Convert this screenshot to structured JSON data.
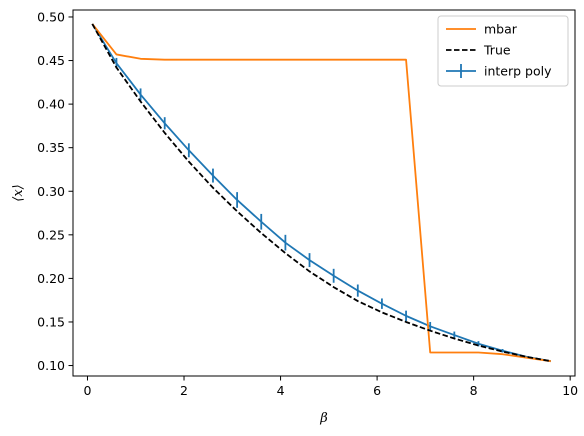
{
  "chart_data": {
    "type": "line",
    "title": "",
    "xlabel": "β",
    "ylabel": "⟨x⟩",
    "xlim": [
      -0.3,
      10.1
    ],
    "ylim": [
      0.088,
      0.508
    ],
    "xticks": [
      0,
      2,
      4,
      6,
      8,
      10
    ],
    "xtick_labels": [
      "0",
      "2",
      "4",
      "6",
      "8",
      "10"
    ],
    "yticks": [
      0.1,
      0.15,
      0.2,
      0.25,
      0.3,
      0.35,
      0.4,
      0.45,
      0.5
    ],
    "ytick_labels": [
      "0.10",
      "0.15",
      "0.20",
      "0.25",
      "0.30",
      "0.35",
      "0.40",
      "0.45",
      "0.50"
    ],
    "grid": false,
    "legend_position": "top-right",
    "series": [
      {
        "name": "mbar",
        "color": "#ff7f0e",
        "style": "solid",
        "x": [
          0.1,
          0.6,
          1.1,
          1.6,
          2.1,
          2.6,
          3.1,
          3.6,
          4.1,
          4.6,
          5.1,
          5.6,
          6.1,
          6.6,
          7.1,
          7.6,
          8.1,
          8.6,
          9.1,
          9.6
        ],
        "y": [
          0.492,
          0.457,
          0.452,
          0.451,
          0.451,
          0.451,
          0.451,
          0.451,
          0.451,
          0.451,
          0.451,
          0.451,
          0.451,
          0.451,
          0.115,
          0.115,
          0.115,
          0.113,
          0.109,
          0.105
        ]
      },
      {
        "name": "True",
        "color": "#000000",
        "style": "dashed",
        "x": [
          0.1,
          0.6,
          1.1,
          1.6,
          2.1,
          2.6,
          3.1,
          3.6,
          4.1,
          4.6,
          5.1,
          5.6,
          6.1,
          6.6,
          7.1,
          7.6,
          8.1,
          8.6,
          9.1,
          9.6
        ],
        "y": [
          0.492,
          0.442,
          0.403,
          0.367,
          0.334,
          0.304,
          0.277,
          0.252,
          0.229,
          0.208,
          0.19,
          0.174,
          0.161,
          0.15,
          0.14,
          0.131,
          0.123,
          0.116,
          0.11,
          0.105
        ]
      },
      {
        "name": "interp poly",
        "color": "#1f77b4",
        "style": "solid",
        "x": [
          0.1,
          0.6,
          1.1,
          1.6,
          2.1,
          2.6,
          3.1,
          3.6,
          4.1,
          4.6,
          5.1,
          5.6,
          6.1,
          6.6,
          7.1,
          7.6,
          8.1,
          8.6,
          9.1,
          9.6
        ],
        "y": [
          0.492,
          0.447,
          0.411,
          0.378,
          0.347,
          0.318,
          0.29,
          0.265,
          0.241,
          0.221,
          0.203,
          0.186,
          0.171,
          0.157,
          0.145,
          0.135,
          0.125,
          0.117,
          0.11,
          0.105
        ],
        "yerr": [
          0.0,
          0.006,
          0.007,
          0.007,
          0.008,
          0.008,
          0.009,
          0.009,
          0.009,
          0.008,
          0.008,
          0.007,
          0.006,
          0.006,
          0.005,
          0.004,
          0.003,
          0.002,
          0.001,
          0.0
        ]
      }
    ]
  }
}
